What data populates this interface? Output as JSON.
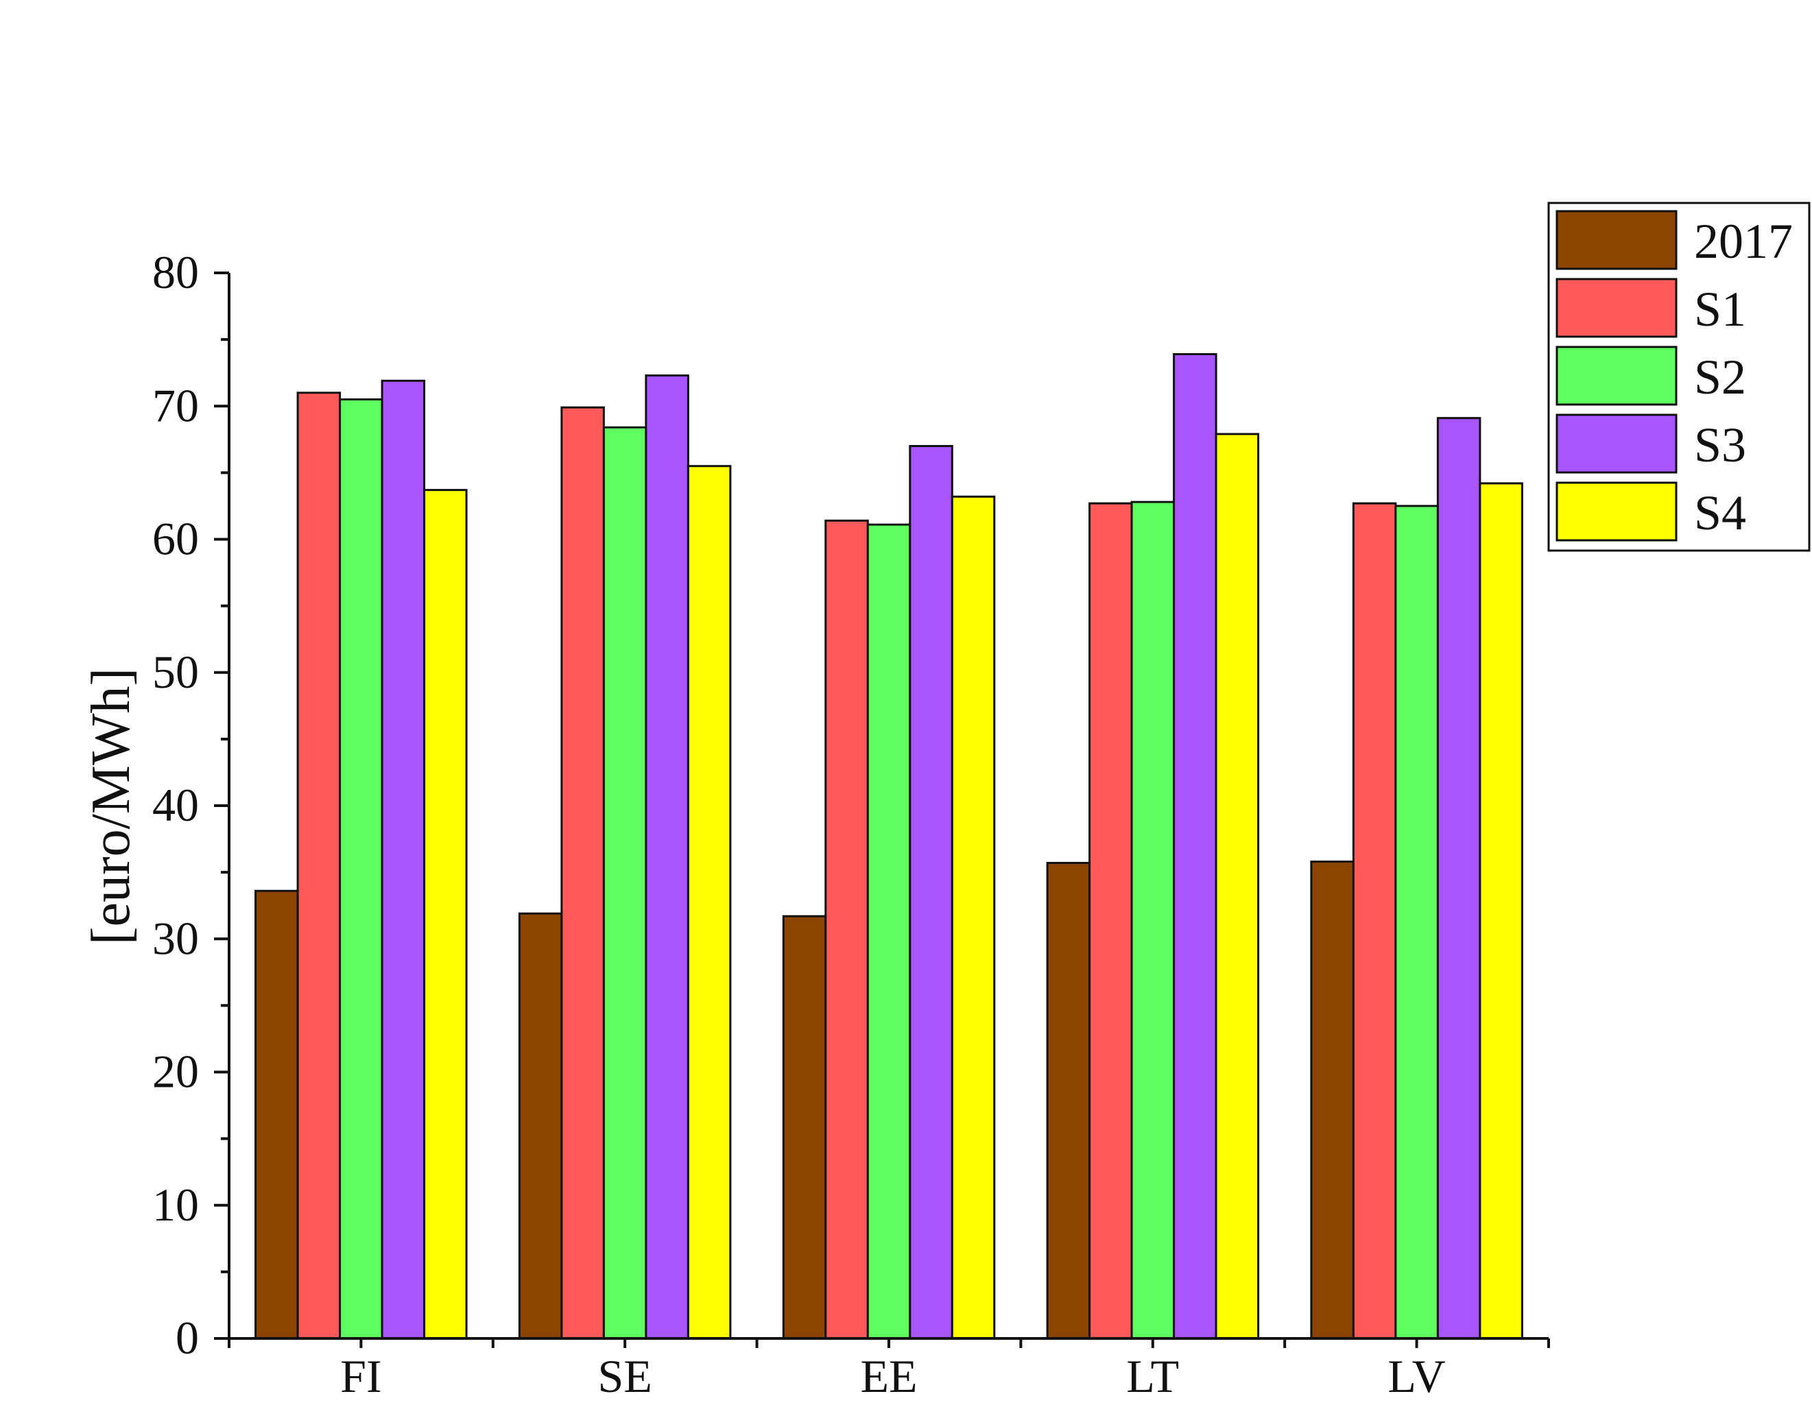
{
  "chart_data": {
    "type": "bar",
    "title": "",
    "xlabel": "",
    "ylabel": "[euro/MWh]",
    "ylim": [
      0,
      80
    ],
    "yticks": [
      0,
      10,
      20,
      30,
      40,
      50,
      60,
      70,
      80
    ],
    "grid": false,
    "legend_position": "top-right",
    "categories": [
      "FI",
      "SE",
      "EE",
      "LT",
      "LV"
    ],
    "series": [
      {
        "name": "2017",
        "color": "#8B4500",
        "values": [
          33.6,
          31.9,
          31.7,
          35.7,
          35.8
        ]
      },
      {
        "name": "S1",
        "color": "#FF5A5A",
        "values": [
          71.0,
          69.9,
          61.4,
          62.7,
          62.7
        ]
      },
      {
        "name": "S2",
        "color": "#5FFF5F",
        "values": [
          70.5,
          68.4,
          61.1,
          62.8,
          62.5
        ]
      },
      {
        "name": "S3",
        "color": "#A855FF",
        "values": [
          71.9,
          72.3,
          67.0,
          73.9,
          69.1
        ]
      },
      {
        "name": "S4",
        "color": "#FFFF00",
        "values": [
          63.7,
          65.5,
          63.2,
          67.9,
          64.2
        ]
      }
    ]
  }
}
